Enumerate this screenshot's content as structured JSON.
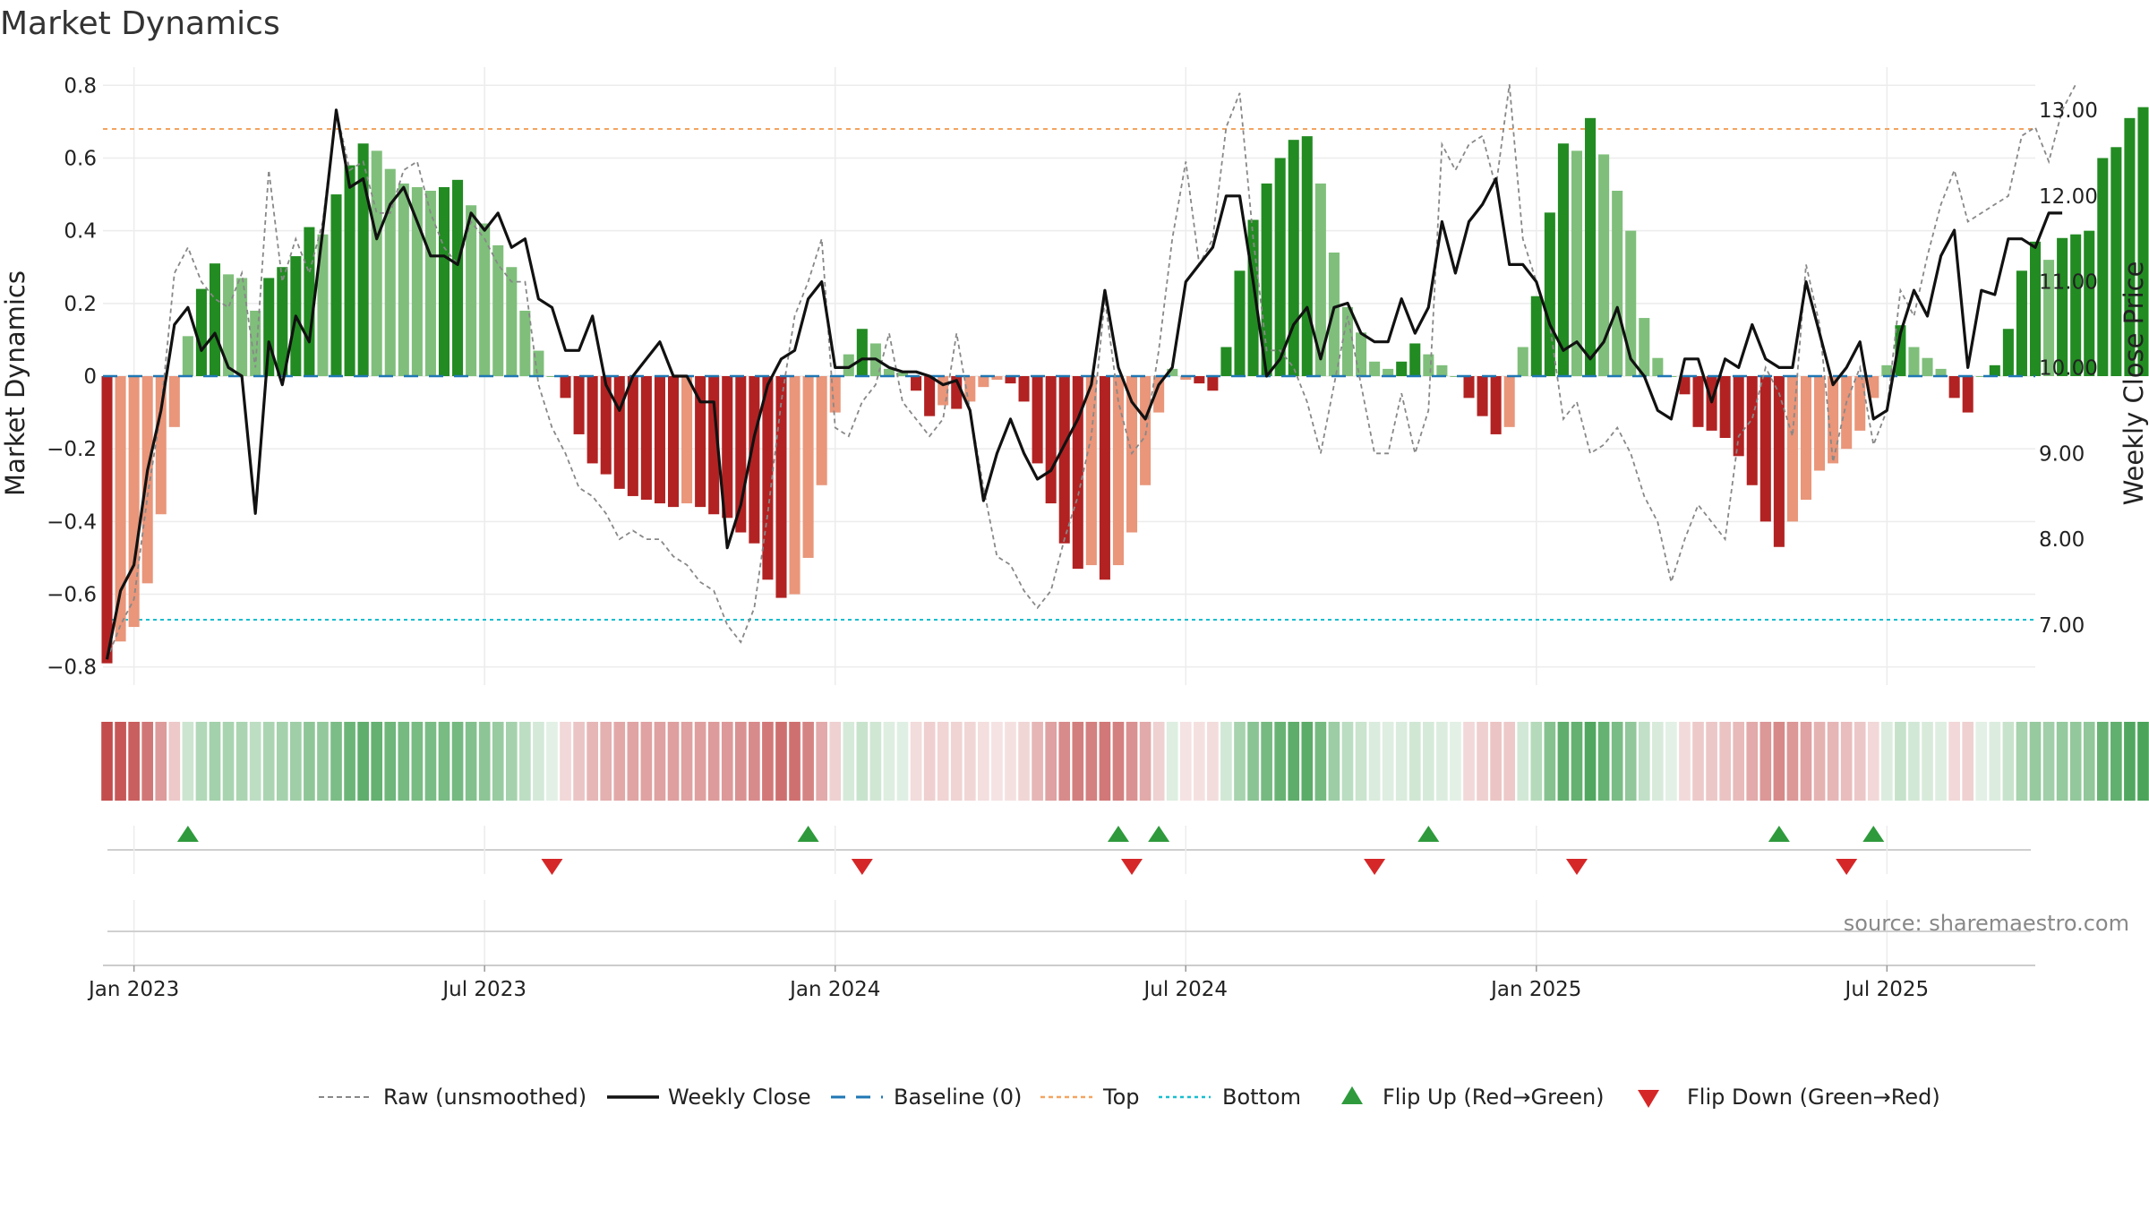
{
  "chart_data": {
    "type": "bar",
    "title": "Market Dynamics",
    "ylabel_left": "Market Dynamics",
    "ylabel_right": "Weekly Close Price",
    "source": "source: sharemaestro.com",
    "ylim_left": [
      -0.85,
      0.85
    ],
    "ylim_right": [
      6.3,
      13.5
    ],
    "yticks_left": [
      "0.8",
      "0.6",
      "0.4",
      "0.2",
      "0",
      "−0.2",
      "−0.4",
      "−0.6",
      "−0.8"
    ],
    "yticks_left_values": [
      0.8,
      0.6,
      0.4,
      0.2,
      0,
      -0.2,
      -0.4,
      -0.6,
      -0.8
    ],
    "yticks_right": [
      "13.00",
      "12.00",
      "11.00",
      "10.00",
      "9.00",
      "8.00",
      "7.00"
    ],
    "yticks_right_values": [
      13,
      12,
      11,
      10,
      9,
      8,
      7
    ],
    "xticks": [
      "Jan 2023",
      "Jul 2023",
      "Jan 2024",
      "Jul 2024",
      "Jan 2025",
      "Jul 2025"
    ],
    "xtick_weeks": [
      0,
      26,
      52,
      78,
      104,
      130
    ],
    "x_range_weeks": [
      -2.3,
      141
    ],
    "reference_lines": {
      "baseline": 0,
      "top": 0.68,
      "bottom": -0.67
    },
    "colors": {
      "strong_green": "#228b22",
      "light_green": "#7fbf7b",
      "strong_red": "#b22222",
      "light_red": "#e9967a",
      "price_line": "#111111",
      "raw_line": "#888888",
      "baseline": "#1f77b4",
      "top": "#f4a460",
      "bottom": "#17becf",
      "flip_up": "#2e9a3c",
      "flip_down": "#d62728"
    },
    "series": [
      {
        "name": "Market Dynamics",
        "start_week": -2,
        "values": [
          -0.79,
          -0.73,
          -0.69,
          -0.57,
          -0.38,
          -0.14,
          0.11,
          0.24,
          0.31,
          0.28,
          0.27,
          0.18,
          0.27,
          0.3,
          0.33,
          0.41,
          0.39,
          0.5,
          0.58,
          0.64,
          0.62,
          0.57,
          0.53,
          0.52,
          0.51,
          0.52,
          0.54,
          0.47,
          0.42,
          0.36,
          0.3,
          0.18,
          0.07,
          0.0,
          -0.06,
          -0.16,
          -0.24,
          -0.27,
          -0.31,
          -0.33,
          -0.34,
          -0.35,
          -0.36,
          -0.35,
          -0.36,
          -0.38,
          -0.39,
          -0.43,
          -0.46,
          -0.56,
          -0.61,
          -0.6,
          -0.5,
          -0.3,
          -0.1,
          0.06,
          0.13,
          0.09,
          0.02,
          0.01,
          -0.04,
          -0.11,
          -0.08,
          -0.09,
          -0.07,
          -0.03,
          -0.01,
          -0.02,
          -0.07,
          -0.24,
          -0.35,
          -0.46,
          -0.53,
          -0.52,
          -0.56,
          -0.52,
          -0.43,
          -0.3,
          -0.1,
          0.02,
          -0.01,
          -0.02,
          -0.04,
          0.08,
          0.29,
          0.43,
          0.53,
          0.6,
          0.65,
          0.66,
          0.53,
          0.34,
          0.19,
          0.12,
          0.04,
          0.02,
          0.04,
          0.09,
          0.06,
          0.03,
          0.0,
          -0.06,
          -0.11,
          -0.16,
          -0.14,
          0.08,
          0.22,
          0.45,
          0.64,
          0.62,
          0.71,
          0.61,
          0.51,
          0.4,
          0.16,
          0.05,
          0.0,
          -0.05,
          -0.14,
          -0.15,
          -0.17,
          -0.22,
          -0.3,
          -0.4,
          -0.47,
          -0.4,
          -0.34,
          -0.26,
          -0.24,
          -0.2,
          -0.15,
          -0.06,
          0.03,
          0.14,
          0.08,
          0.05,
          0.02,
          -0.06,
          -0.1,
          0.0,
          0.03,
          0.13,
          0.29,
          0.37,
          0.32,
          0.38,
          0.39,
          0.4,
          0.6,
          0.63,
          0.71,
          0.74
        ]
      },
      {
        "name": "Weekly Close",
        "start_week": -2,
        "values": [
          6.6,
          7.4,
          7.7,
          8.8,
          9.5,
          10.5,
          10.7,
          10.2,
          10.4,
          10.0,
          9.9,
          8.3,
          10.3,
          9.8,
          10.6,
          10.3,
          11.6,
          13.0,
          12.1,
          12.2,
          11.5,
          11.9,
          12.1,
          11.7,
          11.3,
          11.3,
          11.2,
          11.8,
          11.6,
          11.8,
          11.4,
          11.5,
          10.8,
          10.7,
          10.2,
          10.2,
          10.6,
          9.8,
          9.5,
          9.9,
          10.1,
          10.3,
          9.9,
          9.9,
          9.6,
          9.6,
          7.9,
          8.4,
          9.2,
          9.8,
          10.1,
          10.2,
          10.8,
          11.0,
          10.0,
          10.0,
          10.1,
          10.1,
          10.0,
          9.95,
          9.95,
          9.9,
          9.8,
          9.85,
          9.5,
          8.45,
          9.0,
          9.4,
          9.0,
          8.7,
          8.8,
          9.1,
          9.4,
          9.8,
          10.9,
          10.0,
          9.6,
          9.4,
          9.8,
          10.0,
          11.0,
          11.2,
          11.4,
          12.0,
          12.0,
          11.0,
          9.9,
          10.1,
          10.5,
          10.7,
          10.1,
          10.7,
          10.75,
          10.4,
          10.3,
          10.3,
          10.8,
          10.4,
          10.7,
          11.7,
          11.1,
          11.7,
          11.9,
          12.2,
          11.2,
          11.2,
          11.0,
          10.5,
          10.2,
          10.3,
          10.1,
          10.3,
          10.7,
          10.1,
          9.9,
          9.5,
          9.4,
          10.1,
          10.1,
          9.6,
          10.1,
          10.0,
          10.5,
          10.1,
          10.0,
          10.0,
          11.0,
          10.4,
          9.8,
          10.0,
          10.3,
          9.4,
          9.5,
          10.4,
          10.9,
          10.6,
          11.3,
          11.6,
          10.0,
          10.9,
          10.85,
          11.5,
          11.5,
          11.4,
          11.8,
          11.8
        ]
      },
      {
        "name": "Raw (unsmoothed)",
        "start_week": -2,
        "values": [
          6.6,
          7.0,
          7.3,
          8.5,
          9.5,
          11.1,
          11.4,
          11.0,
          10.8,
          10.7,
          11.1,
          10.0,
          12.3,
          11.0,
          11.5,
          11.1,
          11.7,
          13.0,
          12.3,
          12.4,
          11.8,
          11.8,
          12.3,
          12.4,
          11.8,
          11.4,
          11.2,
          11.7,
          11.5,
          11.2,
          11.0,
          11.0,
          9.8,
          9.3,
          9.0,
          8.6,
          8.5,
          8.3,
          8.0,
          8.1,
          8.0,
          8.0,
          7.8,
          7.7,
          7.5,
          7.4,
          7.0,
          6.8,
          7.2,
          8.3,
          9.6,
          10.6,
          11.0,
          11.5,
          9.3,
          9.2,
          9.6,
          9.8,
          10.4,
          9.6,
          9.4,
          9.2,
          9.4,
          10.4,
          9.5,
          8.6,
          7.8,
          7.7,
          7.4,
          7.2,
          7.4,
          8.0,
          8.5,
          9.2,
          10.8,
          9.6,
          9.0,
          9.2,
          10.2,
          11.5,
          12.4,
          11.2,
          11.5,
          12.8,
          13.2,
          11.5,
          10.2,
          10.2,
          10.0,
          9.6,
          9.0,
          9.8,
          10.6,
          9.8,
          9.0,
          9.0,
          9.7,
          9.0,
          9.5,
          12.6,
          12.3,
          12.6,
          12.7,
          12.1,
          13.3,
          11.5,
          11.0,
          10.5,
          9.4,
          9.6,
          9.0,
          9.1,
          9.3,
          9.0,
          8.5,
          8.2,
          7.5,
          8.0,
          8.4,
          8.2,
          8.0,
          9.2,
          9.4,
          10.0,
          9.7,
          9.2,
          11.2,
          10.5,
          8.9,
          9.6,
          10.0,
          9.1,
          9.5,
          10.9,
          10.6,
          11.3,
          11.9,
          12.3,
          11.7,
          11.8,
          11.9,
          12.0,
          12.7,
          12.8,
          12.4,
          13.0,
          13.3
        ]
      }
    ],
    "regime_strip_intensity_note": "colored strip mirrors sign/strength of Market Dynamics",
    "flips": {
      "up_weeks": [
        4,
        50,
        73,
        76,
        96,
        122,
        129
      ],
      "down_weeks": [
        31,
        54,
        74,
        92,
        107,
        127
      ]
    },
    "legend": [
      {
        "label": "Raw (unsmoothed)",
        "kind": "dashed-gray"
      },
      {
        "label": "Weekly Close",
        "kind": "solid-black"
      },
      {
        "label": "Baseline (0)",
        "kind": "dashed-blue"
      },
      {
        "label": "Top",
        "kind": "dotted-orange"
      },
      {
        "label": "Bottom",
        "kind": "dotted-cyan"
      },
      {
        "label": "Flip Up (Red→Green)",
        "kind": "triangle-up"
      },
      {
        "label": "Flip Down (Green→Red)",
        "kind": "triangle-down"
      }
    ]
  }
}
